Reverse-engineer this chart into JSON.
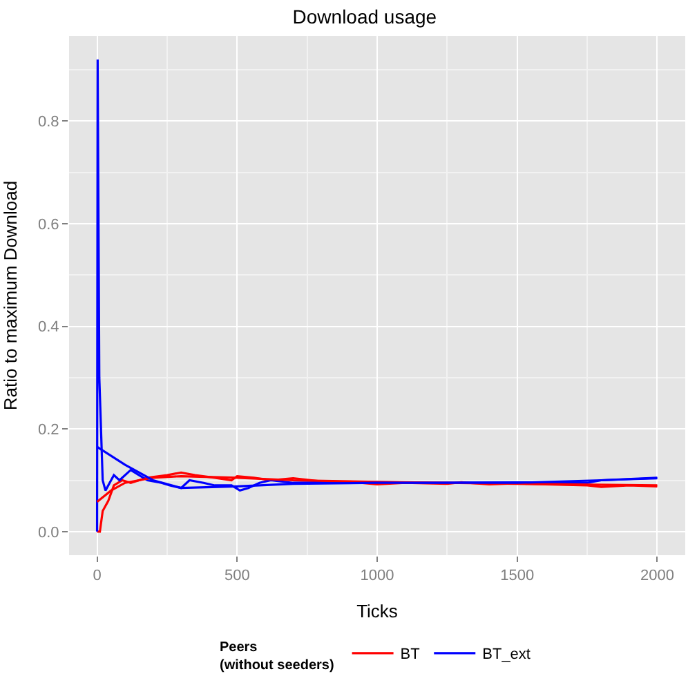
{
  "chart_data": {
    "type": "line",
    "title": "Download usage",
    "xlabel": "Ticks",
    "ylabel": "Ratio to maximum Download",
    "legend_title": "Peers\n(without seeders)",
    "xlim": [
      -100,
      2100
    ],
    "xticks": [
      0,
      500,
      1000,
      1500,
      2000
    ],
    "ylim": [
      -0.046,
      0.966
    ],
    "yticks": [
      {
        "value": 0,
        "label": "0.0"
      },
      0.2,
      0.4,
      0.6,
      0.8
    ],
    "grid": true,
    "legend": "bottom",
    "series": [
      {
        "name": "BT",
        "color": "#ff0000",
        "x": [
          0,
          10,
          20,
          40,
          60,
          90,
          120,
          180,
          250,
          300,
          350,
          420,
          480,
          500,
          560,
          620,
          700,
          800,
          900,
          1000,
          1100,
          1250,
          1300,
          1400,
          1500,
          1600,
          1750,
          1800,
          1900,
          2000
        ],
        "values": [
          0,
          0,
          0.04,
          0.06,
          0.09,
          0.1,
          0.095,
          0.105,
          0.11,
          0.115,
          0.11,
          0.105,
          0.1,
          0.108,
          0.105,
          0.1,
          0.104,
          0.098,
          0.097,
          0.092,
          0.095,
          0.093,
          0.096,
          0.092,
          0.094,
          0.092,
          0.09,
          0.087,
          0.09,
          0.088
        ]
      },
      {
        "name": "BT_ext",
        "color": "#0000ff",
        "x": [
          0,
          2,
          8,
          20,
          30,
          60,
          80,
          120,
          150,
          180,
          230,
          260,
          300,
          330,
          380,
          420,
          480,
          510,
          540,
          580,
          620,
          700,
          900,
          1200,
          1500,
          1750,
          1800,
          1900,
          2000
        ],
        "values": [
          0,
          0.92,
          0.3,
          0.1,
          0.08,
          0.11,
          0.1,
          0.12,
          0.11,
          0.1,
          0.095,
          0.09,
          0.085,
          0.1,
          0.095,
          0.09,
          0.09,
          0.08,
          0.085,
          0.095,
          0.1,
          0.095,
          0.097,
          0.095,
          0.096,
          0.095,
          0.1,
          0.102,
          0.104
        ]
      },
      {
        "type": "line",
        "color": "#ff0000",
        "x": [
          0,
          50,
          100,
          200,
          300,
          500,
          700,
          1000,
          1500,
          2000
        ],
        "values": [
          0.058,
          0.08,
          0.095,
          0.105,
          0.108,
          0.105,
          0.1,
          0.097,
          0.093,
          0.09
        ]
      },
      {
        "type": "line",
        "color": "#0000ff",
        "x": [
          0,
          100,
          200,
          300,
          500,
          700,
          1000,
          1500,
          1800,
          2000
        ],
        "values": [
          0.165,
          0.13,
          0.1,
          0.085,
          0.088,
          0.093,
          0.095,
          0.095,
          0.1,
          0.105
        ]
      }
    ]
  }
}
